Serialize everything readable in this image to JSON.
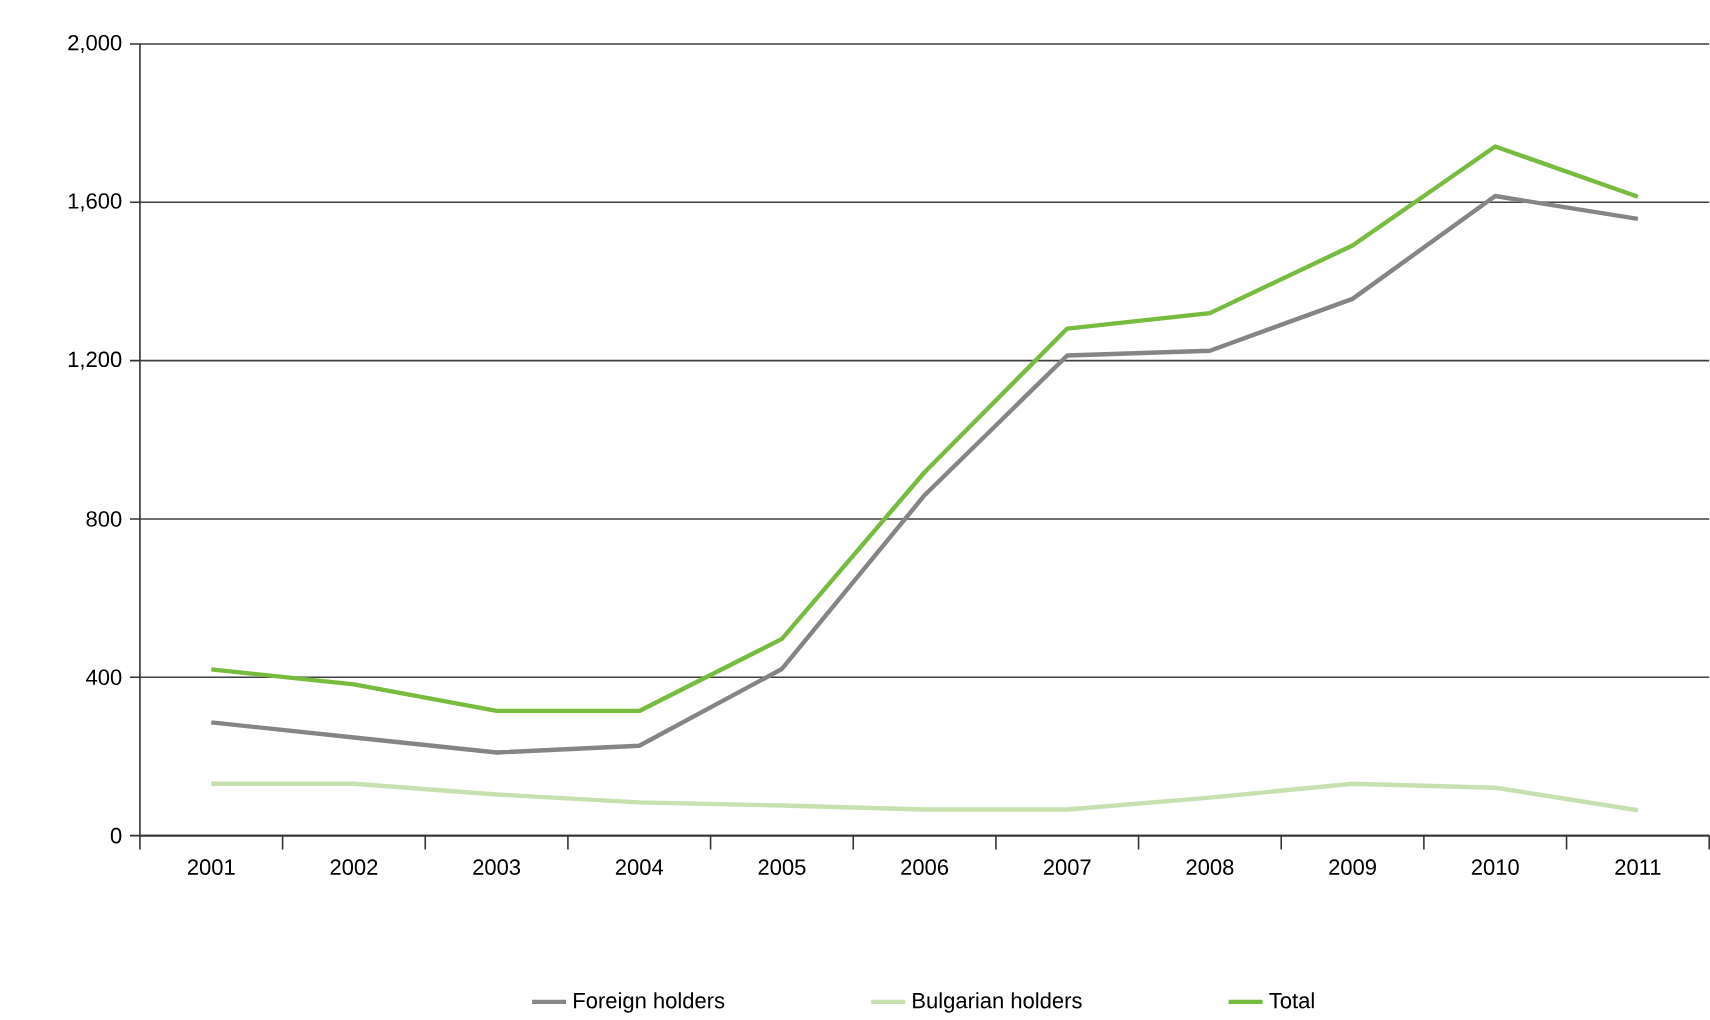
{
  "chart_data": {
    "type": "line",
    "categories": [
      "2001",
      "2002",
      "2003",
      "2004",
      "2005",
      "2006",
      "2007",
      "2008",
      "2009",
      "2010",
      "2011"
    ],
    "series": [
      {
        "name": "Foreign holders",
        "color": "#858585",
        "values": [
          286,
          248,
          210,
          227,
          421,
          860,
          1213,
          1225,
          1356,
          1616,
          1558
        ]
      },
      {
        "name": "Bulgarian holders",
        "color": "#c6e0b0",
        "values": [
          131,
          131,
          104,
          84,
          76,
          66,
          66,
          96,
          131,
          121,
          64
        ]
      },
      {
        "name": "Total",
        "color": "#77bc3f",
        "values": [
          420,
          382,
          315,
          315,
          497,
          918,
          1281,
          1320,
          1491,
          1741,
          1614
        ]
      }
    ],
    "ylim": [
      0,
      2000
    ],
    "yticks": [
      0,
      400,
      800,
      {
        "value": 1200,
        "label": "1,200"
      },
      {
        "value": 1600,
        "label": "1,600"
      },
      {
        "value": 2000,
        "label": "2,000"
      }
    ],
    "grid": "y",
    "legend": "bottom"
  }
}
